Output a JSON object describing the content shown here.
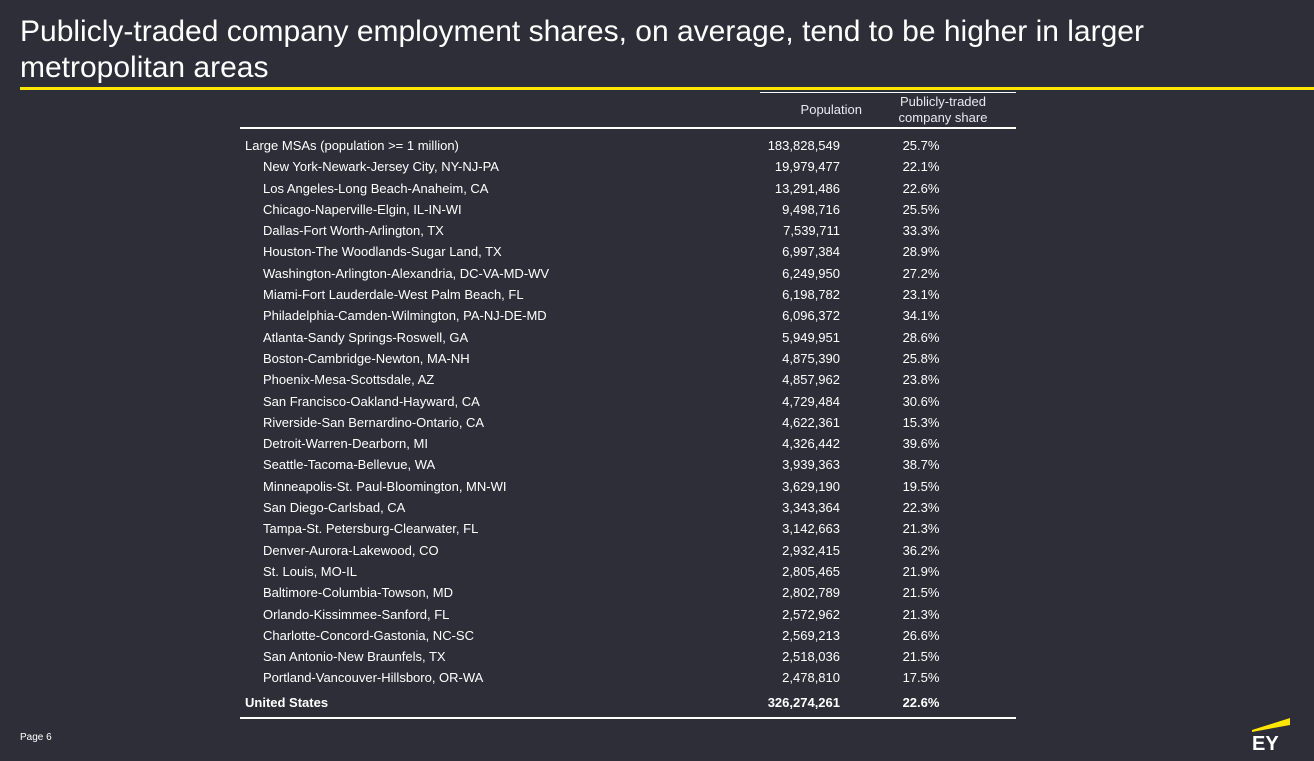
{
  "title": "Publicly-traded company employment shares, on average, tend to be higher in larger metropolitan areas",
  "table": {
    "headers": {
      "population": "Population",
      "share_line1": "Publicly-traded",
      "share_line2": "company share"
    },
    "group": {
      "label": "Large MSAs (population >= 1 million)",
      "population": "183,828,549",
      "share": "25.7%"
    },
    "rows": [
      {
        "label": "New York-Newark-Jersey City, NY-NJ-PA",
        "population": "19,979,477",
        "share": "22.1%"
      },
      {
        "label": "Los Angeles-Long Beach-Anaheim, CA",
        "population": "13,291,486",
        "share": "22.6%"
      },
      {
        "label": "Chicago-Naperville-Elgin, IL-IN-WI",
        "population": "9,498,716",
        "share": "25.5%"
      },
      {
        "label": "Dallas-Fort Worth-Arlington, TX",
        "population": "7,539,711",
        "share": "33.3%"
      },
      {
        "label": "Houston-The Woodlands-Sugar Land, TX",
        "population": "6,997,384",
        "share": "28.9%"
      },
      {
        "label": "Washington-Arlington-Alexandria, DC-VA-MD-WV",
        "population": "6,249,950",
        "share": "27.2%"
      },
      {
        "label": "Miami-Fort Lauderdale-West Palm Beach, FL",
        "population": "6,198,782",
        "share": "23.1%"
      },
      {
        "label": "Philadelphia-Camden-Wilmington, PA-NJ-DE-MD",
        "population": "6,096,372",
        "share": "34.1%"
      },
      {
        "label": "Atlanta-Sandy Springs-Roswell, GA",
        "population": "5,949,951",
        "share": "28.6%"
      },
      {
        "label": "Boston-Cambridge-Newton, MA-NH",
        "population": "4,875,390",
        "share": "25.8%"
      },
      {
        "label": "Phoenix-Mesa-Scottsdale, AZ",
        "population": "4,857,962",
        "share": "23.8%"
      },
      {
        "label": "San Francisco-Oakland-Hayward, CA",
        "population": "4,729,484",
        "share": "30.6%"
      },
      {
        "label": "Riverside-San Bernardino-Ontario, CA",
        "population": "4,622,361",
        "share": "15.3%"
      },
      {
        "label": "Detroit-Warren-Dearborn, MI",
        "population": "4,326,442",
        "share": "39.6%"
      },
      {
        "label": "Seattle-Tacoma-Bellevue, WA",
        "population": "3,939,363",
        "share": "38.7%"
      },
      {
        "label": "Minneapolis-St. Paul-Bloomington, MN-WI",
        "population": "3,629,190",
        "share": "19.5%"
      },
      {
        "label": "San Diego-Carlsbad, CA",
        "population": "3,343,364",
        "share": "22.3%"
      },
      {
        "label": "Tampa-St. Petersburg-Clearwater, FL",
        "population": "3,142,663",
        "share": "21.3%"
      },
      {
        "label": "Denver-Aurora-Lakewood, CO",
        "population": "2,932,415",
        "share": "36.2%"
      },
      {
        "label": "St. Louis, MO-IL",
        "population": "2,805,465",
        "share": "21.9%"
      },
      {
        "label": "Baltimore-Columbia-Towson, MD",
        "population": "2,802,789",
        "share": "21.5%"
      },
      {
        "label": "Orlando-Kissimmee-Sanford, FL",
        "population": "2,572,962",
        "share": "21.3%"
      },
      {
        "label": "Charlotte-Concord-Gastonia, NC-SC",
        "population": "2,569,213",
        "share": "26.6%"
      },
      {
        "label": "San Antonio-New Braunfels, TX",
        "population": "2,518,036",
        "share": "21.5%"
      },
      {
        "label": "Portland-Vancouver-Hillsboro, OR-WA",
        "population": "2,478,810",
        "share": "17.5%"
      }
    ],
    "total": {
      "label": "United States",
      "population": "326,274,261",
      "share": "22.6%"
    }
  },
  "footer": {
    "page": "Page 6",
    "logo_text": "EY"
  },
  "colors": {
    "background": "#2e2e38",
    "accent": "#ffe600",
    "text": "#ffffff"
  }
}
